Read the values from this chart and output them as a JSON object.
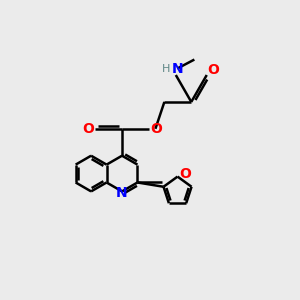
{
  "bg_color": "#ebebeb",
  "bond_color": "#000000",
  "bond_width": 1.8,
  "N_color": "#0000ff",
  "O_color": "#ff0000",
  "H_color": "#5f8787",
  "figsize": [
    3.0,
    3.0
  ],
  "dpi": 100,
  "xlim": [
    0,
    10
  ],
  "ylim": [
    0,
    10
  ]
}
